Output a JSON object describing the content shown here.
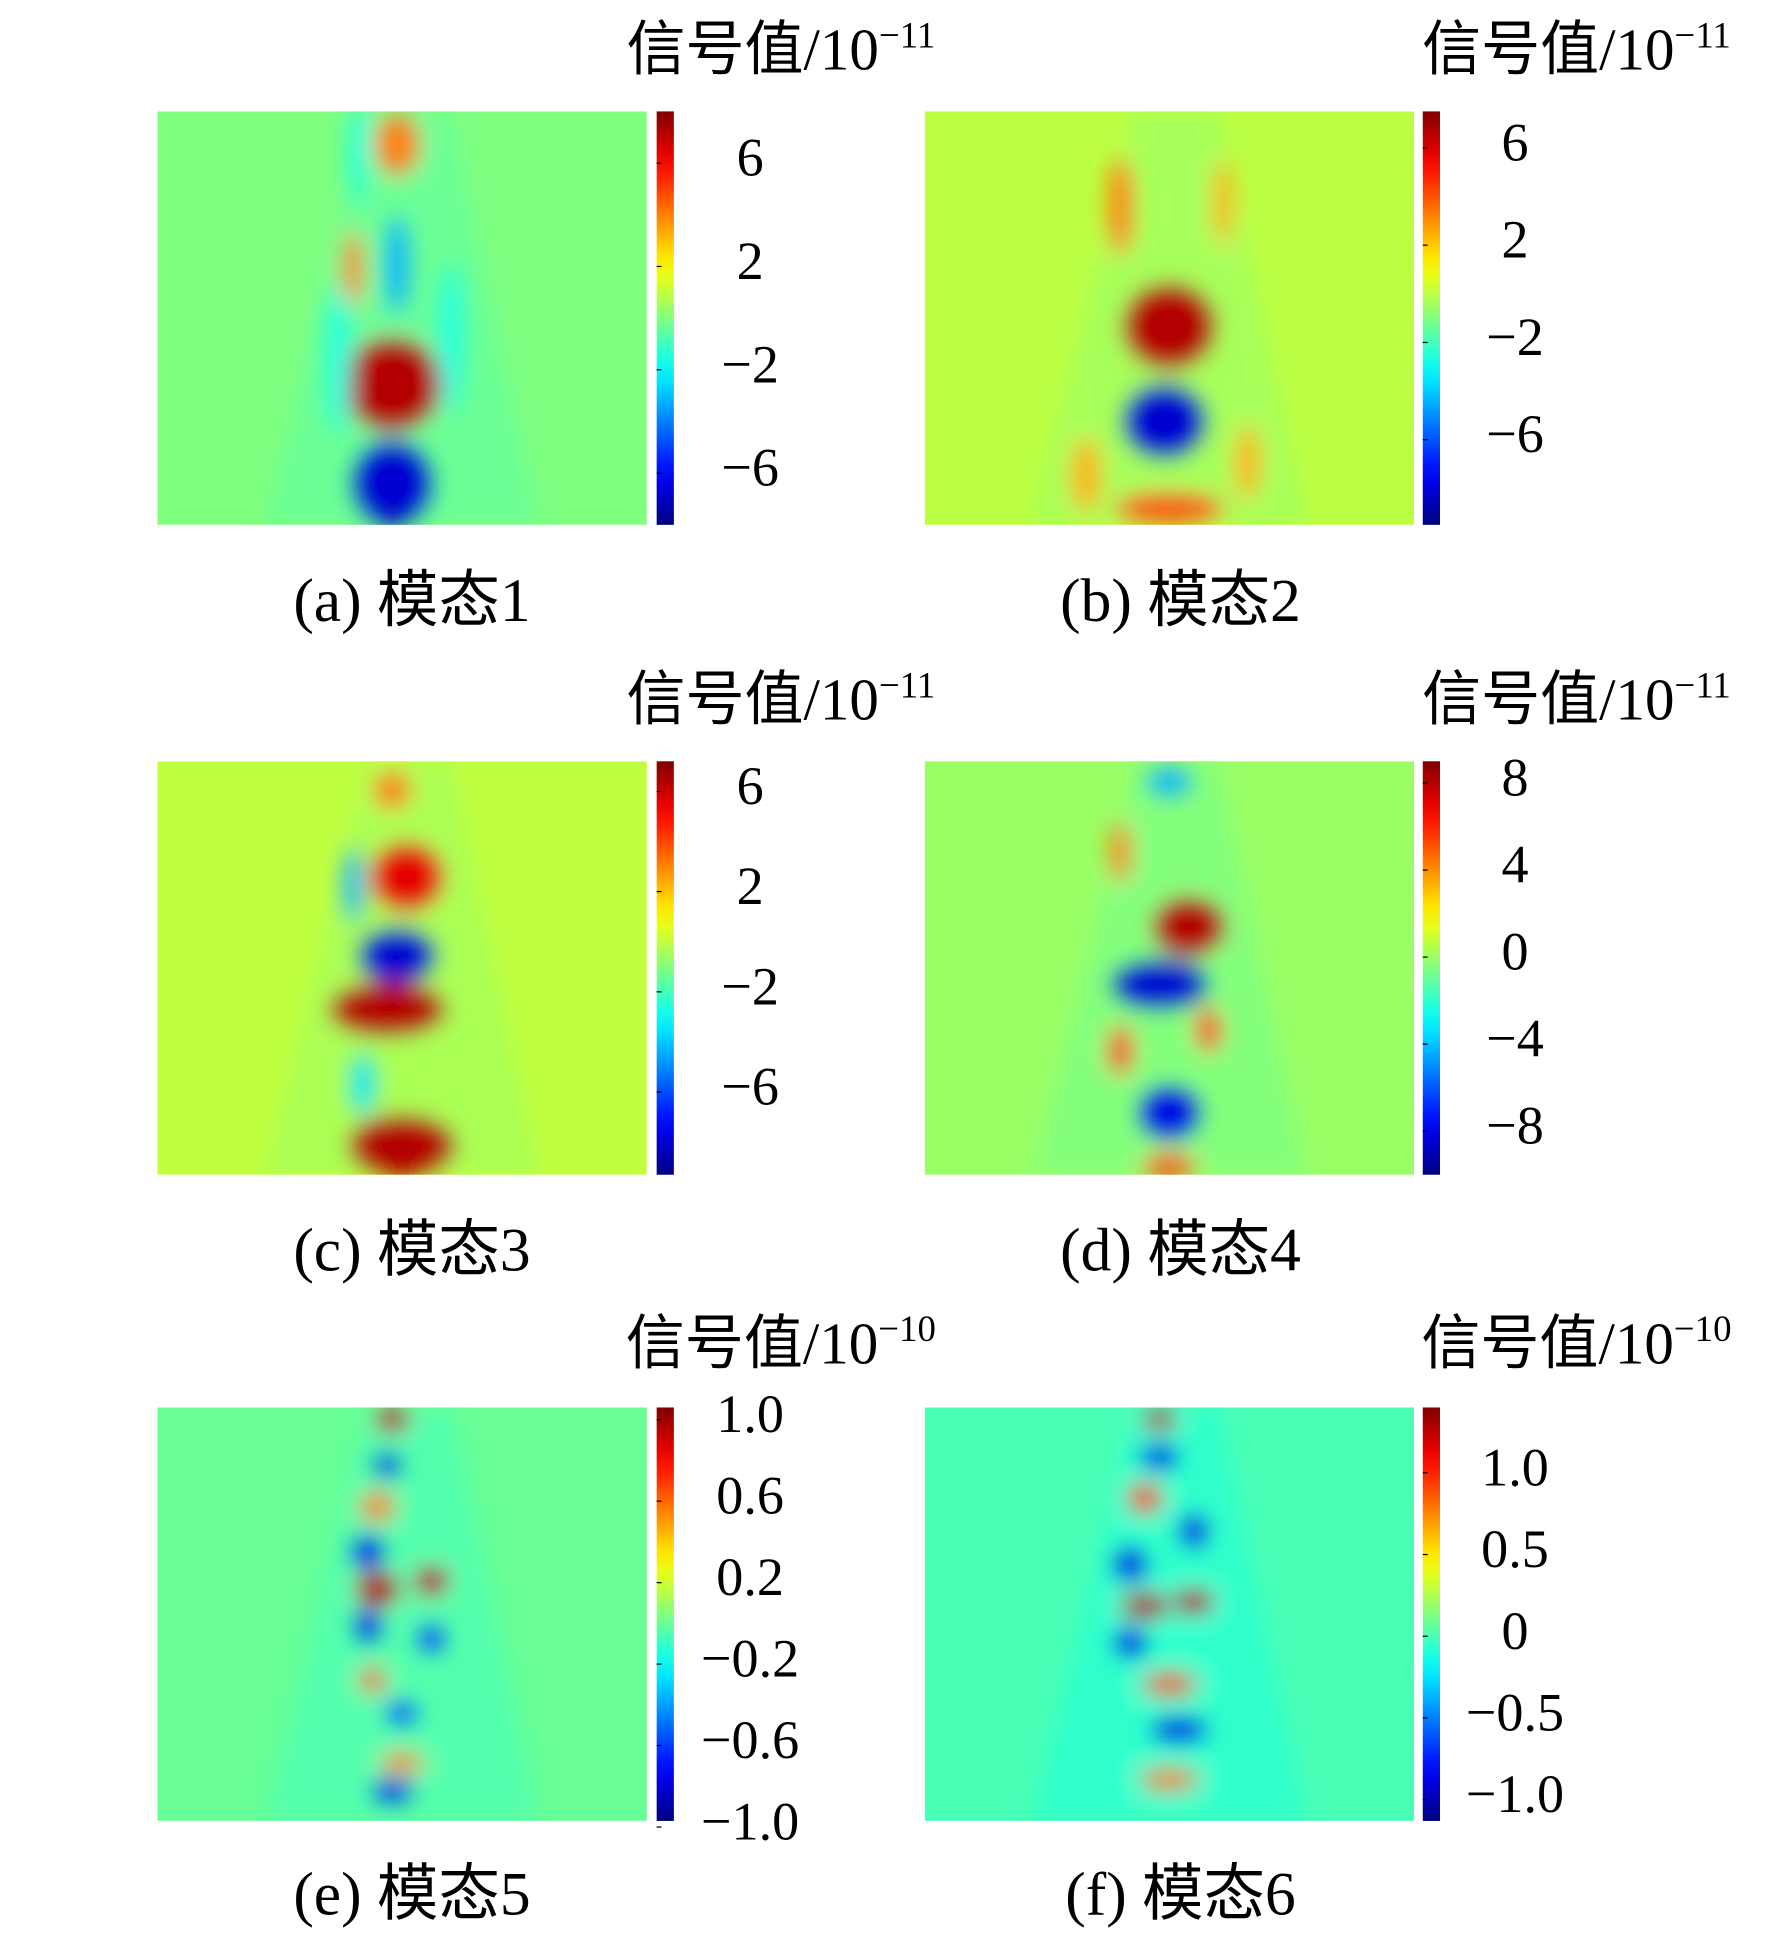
{
  "chart_data": [
    {
      "type": "heatmap",
      "title": "信号值/10",
      "title_exponent": "−11",
      "caption": "(a) 模态1",
      "clim": [
        -8,
        8
      ],
      "cticks": [
        6,
        2,
        {
          "value": -2,
          "label": "−2"
        },
        {
          "value": -6,
          "label": "−6"
        }
      ]
    },
    {
      "type": "heatmap",
      "title": "信号值/10",
      "title_exponent": "−11",
      "caption": "(b) 模态2",
      "clim": [
        -9.5,
        7.5
      ],
      "cticks": [
        6,
        2,
        {
          "value": -2,
          "label": "−2"
        },
        {
          "value": -6,
          "label": "−6"
        }
      ]
    },
    {
      "type": "heatmap",
      "title": "信号值/10",
      "title_exponent": "−11",
      "caption": "(c) 模态3",
      "clim": [
        -9.3,
        7.2
      ],
      "cticks": [
        6,
        2,
        {
          "value": -2,
          "label": "−2"
        },
        {
          "value": -6,
          "label": "−6"
        }
      ]
    },
    {
      "type": "heatmap",
      "title": "信号值/10",
      "title_exponent": "−11",
      "caption": "(d) 模态4",
      "clim": [
        -10,
        9
      ],
      "cticks": [
        8,
        4,
        0,
        {
          "value": -4,
          "label": "−4"
        },
        {
          "value": -8,
          "label": "−8"
        }
      ]
    },
    {
      "type": "heatmap",
      "title": "信号值/10",
      "title_exponent": "−10",
      "caption": "(e) 模态5",
      "clim": [
        -0.97,
        1.06
      ],
      "cticks": [
        {
          "value": 1.0,
          "label": "1.0"
        },
        0.6,
        0.2,
        {
          "value": -0.2,
          "label": "−0.2"
        },
        {
          "value": -0.6,
          "label": "−0.6"
        },
        {
          "value": -1.0,
          "label": "−1.0"
        }
      ]
    },
    {
      "type": "heatmap",
      "title": "信号值/10",
      "title_exponent": "−10",
      "caption": "(f) 模态6",
      "clim": [
        -1.13,
        1.4
      ],
      "cticks": [
        {
          "value": 1.0,
          "label": "1.0"
        },
        0.5,
        0,
        {
          "value": -0.5,
          "label": "−0.5"
        },
        {
          "value": -1.0,
          "label": "−1.0"
        }
      ]
    }
  ]
}
